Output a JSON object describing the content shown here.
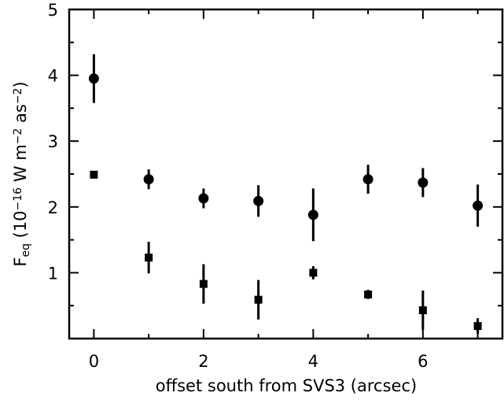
{
  "chart_data": {
    "type": "scatter",
    "x_label": "offset south from SVS3 (arcsec)",
    "y_label_parts": [
      "F",
      "eq",
      " (10",
      "−16",
      " W m",
      "−2",
      " as",
      "−2",
      ")"
    ],
    "x": [
      0,
      1,
      2,
      3,
      4,
      5,
      6,
      7
    ],
    "series": [
      {
        "marker": "circle",
        "color": "#000000",
        "values": [
          3.95,
          2.42,
          2.13,
          2.09,
          1.88,
          2.42,
          2.37,
          2.02
        ],
        "errors": [
          0.37,
          0.15,
          0.15,
          0.24,
          0.4,
          0.22,
          0.22,
          0.32
        ]
      },
      {
        "marker": "square",
        "color": "#000000",
        "values": [
          2.49,
          1.23,
          0.83,
          0.59,
          1.0,
          0.67,
          0.43,
          0.19
        ],
        "errors": [
          0,
          0.24,
          0.3,
          0.3,
          0.1,
          0.07,
          0.3,
          0.12
        ]
      }
    ],
    "xlim": [
      -0.45,
      7.45
    ],
    "ylim": [
      0,
      5
    ],
    "xticks": [
      0,
      2,
      4,
      6
    ],
    "yticks": [
      1,
      2,
      3,
      4,
      5
    ],
    "xminor": [
      1,
      3,
      5,
      7
    ],
    "yminor": [
      0.5,
      1.5,
      2.5,
      3.5,
      4.5
    ],
    "grid": false
  }
}
